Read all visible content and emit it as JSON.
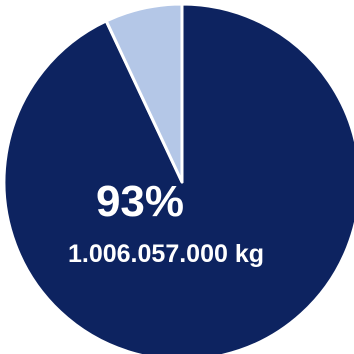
{
  "chart_data": {
    "type": "pie",
    "values": [
      93,
      7
    ],
    "colors": [
      "#0d2360",
      "#b4c7e7"
    ],
    "data_labels": [
      {
        "percent": "93%",
        "amount": "1.006.057.000 kg"
      }
    ],
    "label_color": "#ffffff"
  }
}
